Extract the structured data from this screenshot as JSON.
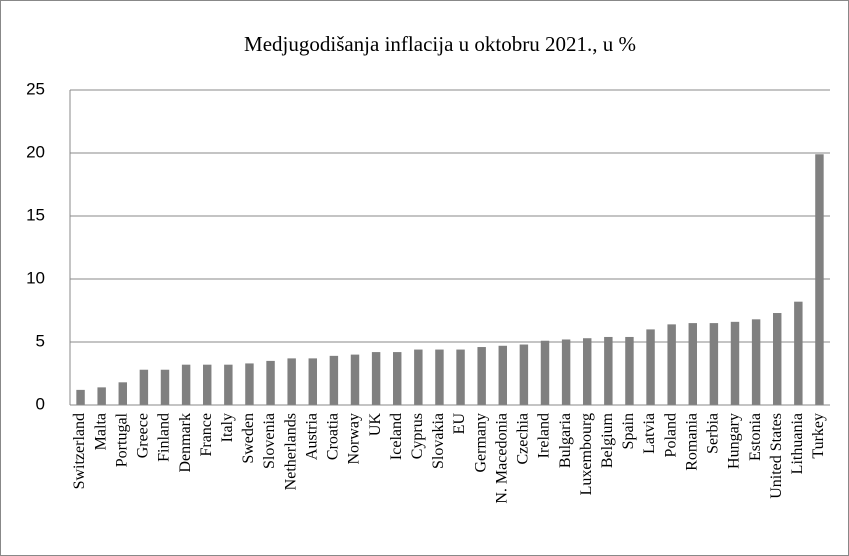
{
  "chart_data": {
    "type": "bar",
    "title": "Medjugodišanja inflacija u oktobru 2021., u %",
    "categories": [
      "Switzerland",
      "Malta",
      "Portugal",
      "Greece",
      "Finland",
      "Denmark",
      "France",
      "Italy",
      "Sweden",
      "Slovenia",
      "Netherlands",
      "Austria",
      "Croatia",
      "Norway",
      "UK",
      "Iceland",
      "Cyprus",
      "Slovakia",
      "EU",
      "Germany",
      "N. Macedonia",
      "Czechia",
      "Ireland",
      "Bulgaria",
      "Luxembourg",
      "Belgium",
      "Spain",
      "Latvia",
      "Poland",
      "Romania",
      "Serbia",
      "Hungary",
      "Estonia",
      "United States",
      "Lithuania",
      "Turkey"
    ],
    "values": [
      1.2,
      1.4,
      1.8,
      2.8,
      2.8,
      3.2,
      3.2,
      3.2,
      3.3,
      3.5,
      3.7,
      3.7,
      3.9,
      4.0,
      4.2,
      4.2,
      4.4,
      4.4,
      4.4,
      4.6,
      4.7,
      4.8,
      5.1,
      5.2,
      5.3,
      5.4,
      5.4,
      6.0,
      6.4,
      6.5,
      6.5,
      6.6,
      6.8,
      7.3,
      8.2,
      19.9
    ],
    "color": "#808080",
    "ylim": [
      0,
      25
    ],
    "yticks": [
      0,
      5,
      10,
      15,
      20,
      25
    ],
    "grid": true
  }
}
